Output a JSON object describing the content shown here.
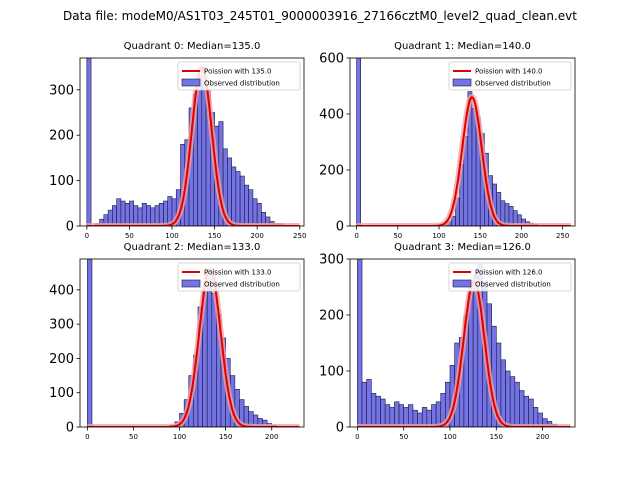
{
  "figure": {
    "suptitle": "Data file: modeM0/AS1T03_245T01_9000003916_27166cztM0_level2_quad_clean.evt"
  },
  "colors": {
    "bar_fill": "#7373e6",
    "bar_edge": "#1a1a3a",
    "poisson_line": "#e00000",
    "poisson_halo": "#f4a0a0"
  },
  "chart_data": [
    {
      "type": "bar",
      "title": "Quadrant 0: Median=135.0",
      "xlim": [
        -8,
        255
      ],
      "ylim": [
        0,
        370
      ],
      "xticks": [
        0,
        50,
        100,
        150,
        200,
        250
      ],
      "yticks": [
        0,
        100,
        200,
        300
      ],
      "bin_width": 5,
      "bins_left": [
        0,
        5,
        10,
        15,
        20,
        25,
        30,
        35,
        40,
        45,
        50,
        55,
        60,
        65,
        70,
        75,
        80,
        85,
        90,
        95,
        100,
        105,
        110,
        115,
        120,
        125,
        130,
        135,
        140,
        145,
        150,
        155,
        160,
        165,
        170,
        175,
        180,
        185,
        190,
        195,
        200,
        205,
        210,
        215,
        220,
        225,
        230,
        235,
        240
      ],
      "counts": [
        370,
        0,
        5,
        15,
        25,
        35,
        45,
        60,
        55,
        50,
        55,
        45,
        40,
        50,
        45,
        40,
        45,
        50,
        55,
        65,
        60,
        80,
        180,
        190,
        260,
        290,
        330,
        350,
        300,
        250,
        220,
        230,
        170,
        150,
        130,
        120,
        110,
        90,
        80,
        60,
        50,
        30,
        20,
        10,
        5,
        5,
        0,
        0,
        0
      ],
      "poisson_label": "Poission with 135.0",
      "poisson_mean": 135,
      "poisson_peak": 350,
      "legend": [
        "Poission with 135.0",
        "Observed distribution"
      ],
      "legend_loc": "upper right"
    },
    {
      "type": "bar",
      "title": "Quadrant 1: Median=140.0",
      "xlim": [
        -8,
        265
      ],
      "ylim": [
        0,
        600
      ],
      "xticks": [
        0,
        50,
        100,
        150,
        200,
        250
      ],
      "yticks": [
        0,
        200,
        400,
        600
      ],
      "bin_width": 5,
      "bins_left": [
        0,
        5,
        10,
        15,
        20,
        25,
        30,
        35,
        40,
        45,
        50,
        55,
        60,
        65,
        70,
        75,
        80,
        85,
        90,
        95,
        100,
        105,
        110,
        115,
        120,
        125,
        130,
        135,
        140,
        145,
        150,
        155,
        160,
        165,
        170,
        175,
        180,
        185,
        190,
        195,
        200,
        205,
        210,
        215,
        220,
        225,
        230,
        235,
        240,
        245,
        250,
        255
      ],
      "counts": [
        600,
        0,
        0,
        0,
        0,
        0,
        0,
        0,
        0,
        0,
        0,
        0,
        0,
        0,
        0,
        0,
        0,
        0,
        0,
        0,
        0,
        5,
        15,
        35,
        100,
        220,
        320,
        480,
        420,
        390,
        330,
        260,
        180,
        150,
        120,
        90,
        80,
        70,
        55,
        40,
        25,
        15,
        10,
        5,
        0,
        0,
        0,
        0,
        0,
        0,
        0,
        0
      ],
      "poisson_label": "Poission with 140.0",
      "poisson_mean": 140,
      "poisson_peak": 460,
      "legend": [
        "Poission with 140.0",
        "Observed distribution"
      ],
      "legend_loc": "upper right"
    },
    {
      "type": "bar",
      "title": "Quadrant 2: Median=133.0",
      "xlim": [
        -8,
        235
      ],
      "ylim": [
        0,
        490
      ],
      "xticks": [
        0,
        50,
        100,
        150,
        200
      ],
      "yticks": [
        0,
        100,
        200,
        300,
        400
      ],
      "bin_width": 5,
      "bins_left": [
        0,
        5,
        10,
        15,
        20,
        25,
        30,
        35,
        40,
        45,
        50,
        55,
        60,
        65,
        70,
        75,
        80,
        85,
        90,
        95,
        100,
        105,
        110,
        115,
        120,
        125,
        130,
        135,
        140,
        145,
        150,
        155,
        160,
        165,
        170,
        175,
        180,
        185,
        190,
        195,
        200,
        205,
        210,
        215
      ],
      "counts": [
        490,
        0,
        0,
        0,
        0,
        0,
        0,
        0,
        0,
        0,
        0,
        0,
        0,
        0,
        0,
        0,
        0,
        0,
        5,
        15,
        40,
        80,
        150,
        210,
        350,
        400,
        460,
        390,
        330,
        260,
        200,
        150,
        110,
        80,
        60,
        45,
        35,
        25,
        20,
        10,
        5,
        0,
        0,
        0
      ],
      "poisson_label": "Poission with 133.0",
      "poisson_mean": 133,
      "poisson_peak": 460,
      "legend": [
        "Poission with 133.0",
        "Observed distribution"
      ],
      "legend_loc": "upper right"
    },
    {
      "type": "bar",
      "title": "Quadrant 3: Median=126.0",
      "xlim": [
        -8,
        235
      ],
      "ylim": [
        0,
        300
      ],
      "xticks": [
        0,
        50,
        100,
        150,
        200
      ],
      "yticks": [
        0,
        100,
        200,
        300
      ],
      "bin_width": 5,
      "bins_left": [
        0,
        5,
        10,
        15,
        20,
        25,
        30,
        35,
        40,
        45,
        50,
        55,
        60,
        65,
        70,
        75,
        80,
        85,
        90,
        95,
        100,
        105,
        110,
        115,
        120,
        125,
        130,
        135,
        140,
        145,
        150,
        155,
        160,
        165,
        170,
        175,
        180,
        185,
        190,
        195,
        200,
        205,
        210,
        215,
        220
      ],
      "counts": [
        300,
        80,
        85,
        60,
        55,
        50,
        40,
        35,
        45,
        40,
        35,
        40,
        30,
        25,
        35,
        30,
        40,
        45,
        60,
        80,
        110,
        150,
        160,
        200,
        250,
        270,
        290,
        260,
        220,
        180,
        150,
        120,
        100,
        90,
        80,
        65,
        55,
        50,
        35,
        25,
        15,
        10,
        5,
        0,
        0
      ],
      "poisson_label": "Poission with 126.0",
      "poisson_mean": 126,
      "poisson_peak": 260,
      "legend": [
        "Poission with 126.0",
        "Observed distribution"
      ],
      "legend_loc": "upper right"
    }
  ]
}
